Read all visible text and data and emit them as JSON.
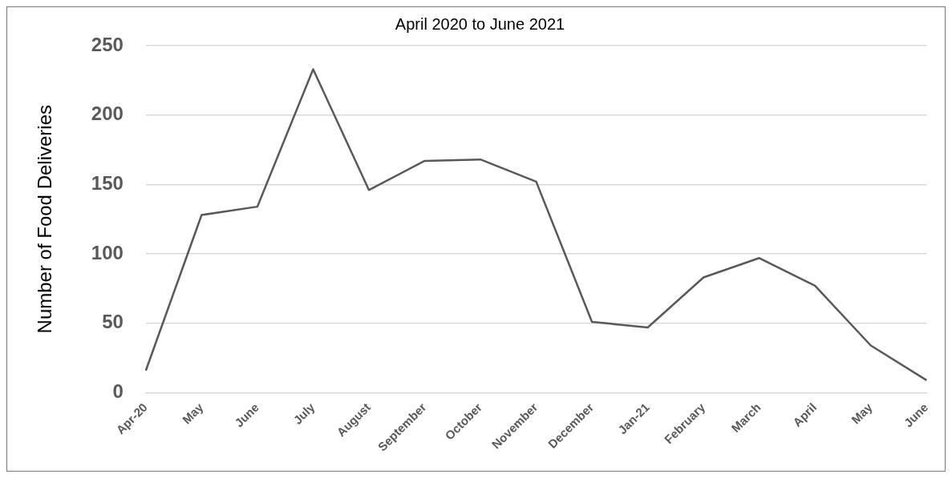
{
  "chart_data": {
    "type": "line",
    "title": "April 2020 to June 2021",
    "ylabel": "Number of Food Deliveries",
    "categories": [
      "Apr-20",
      "May",
      "June",
      "July",
      "August",
      "September",
      "October",
      "November",
      "December",
      "Jan-21",
      "February",
      "March",
      "April",
      "May",
      "June"
    ],
    "series": [
      {
        "color": "#595959",
        "values": [
          16,
          128,
          134,
          233,
          146,
          167,
          168,
          152,
          51,
          47,
          83,
          97,
          77,
          34,
          9
        ]
      }
    ],
    "ylim": [
      0,
      250
    ],
    "yticks": [
      0,
      50,
      100,
      150,
      200,
      250
    ],
    "grid": "y",
    "legend": false,
    "marker": "none",
    "line_style": "solid"
  }
}
